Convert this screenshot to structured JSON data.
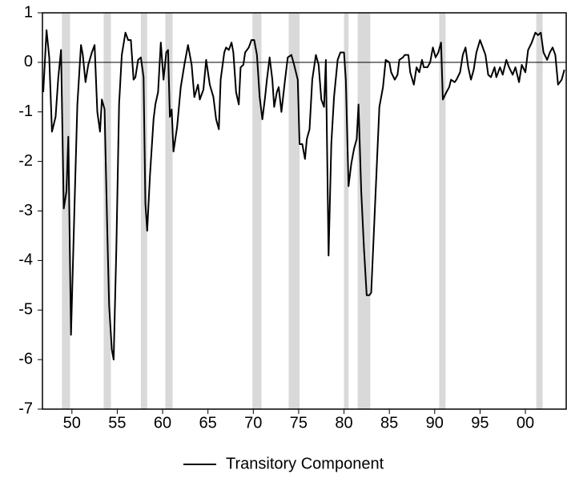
{
  "chart_data": {
    "type": "line",
    "x": [
      1946.84,
      1947.2,
      1947.5,
      1947.8,
      1948.2,
      1948.5,
      1948.8,
      1949.1,
      1949.4,
      1949.6,
      1949.9,
      1950.3,
      1950.6,
      1951.0,
      1951.2,
      1951.5,
      1951.8,
      1952.2,
      1952.5,
      1952.8,
      1953.1,
      1953.3,
      1953.6,
      1953.9,
      1954.1,
      1954.4,
      1954.6,
      1954.9,
      1955.2,
      1955.5,
      1955.9,
      1956.2,
      1956.5,
      1956.8,
      1957.0,
      1957.3,
      1957.6,
      1957.9,
      1958.1,
      1958.3,
      1958.6,
      1959.0,
      1959.2,
      1959.5,
      1959.8,
      1960.1,
      1960.4,
      1960.6,
      1960.8,
      1961.0,
      1961.2,
      1961.6,
      1962.0,
      1962.4,
      1962.8,
      1963.2,
      1963.5,
      1963.9,
      1964.1,
      1964.5,
      1964.8,
      1965.2,
      1965.6,
      1965.9,
      1966.2,
      1966.4,
      1966.8,
      1967.0,
      1967.3,
      1967.6,
      1967.8,
      1968.1,
      1968.4,
      1968.6,
      1968.9,
      1969.1,
      1969.5,
      1969.8,
      1970.1,
      1970.4,
      1970.7,
      1971.0,
      1971.3,
      1971.5,
      1971.8,
      1972.1,
      1972.3,
      1972.6,
      1972.8,
      1973.1,
      1973.5,
      1973.8,
      1974.2,
      1974.5,
      1974.9,
      1975.1,
      1975.4,
      1975.7,
      1975.9,
      1976.2,
      1976.5,
      1976.9,
      1977.2,
      1977.5,
      1977.8,
      1978.0,
      1978.3,
      1978.6,
      1978.9,
      1979.3,
      1979.6,
      1980.0,
      1980.2,
      1980.5,
      1980.8,
      1981.1,
      1981.4,
      1981.6,
      1981.9,
      1982.2,
      1982.5,
      1982.8,
      1983.0,
      1983.3,
      1983.6,
      1983.9,
      1984.3,
      1984.6,
      1985.0,
      1985.2,
      1985.6,
      1985.9,
      1986.1,
      1986.5,
      1986.7,
      1987.1,
      1987.3,
      1987.7,
      1988.0,
      1988.3,
      1988.6,
      1988.8,
      1989.2,
      1989.5,
      1989.8,
      1990.1,
      1990.4,
      1990.7,
      1990.9,
      1991.3,
      1991.6,
      1991.8,
      1992.2,
      1992.4,
      1992.8,
      1993.1,
      1993.4,
      1993.7,
      1994.0,
      1994.3,
      1994.6,
      1995.0,
      1995.3,
      1995.6,
      1995.9,
      1996.2,
      1996.6,
      1996.8,
      1997.2,
      1997.5,
      1997.9,
      1998.2,
      1998.6,
      1998.9,
      1999.3,
      1999.6,
      2000.0,
      2000.3,
      2000.7,
      2001.1,
      2001.4,
      2001.7,
      2002.0,
      2002.4,
      2002.7,
      2003.0,
      2003.3,
      2003.6,
      2004.0,
      2004.3
    ],
    "series": [
      {
        "name": "Transitory Component",
        "color": "#000000",
        "values": [
          -0.6,
          0.65,
          0.1,
          -1.4,
          -1.1,
          -0.3,
          0.25,
          -2.95,
          -2.6,
          -1.5,
          -5.5,
          -2.8,
          -0.85,
          0.35,
          0.15,
          -0.4,
          -0.05,
          0.2,
          0.35,
          -1.0,
          -1.4,
          -0.75,
          -0.95,
          -3.4,
          -4.9,
          -5.8,
          -6.0,
          -3.75,
          -0.85,
          0.15,
          0.6,
          0.45,
          0.45,
          -0.35,
          -0.3,
          0.05,
          0.1,
          -0.3,
          -2.85,
          -3.4,
          -2.3,
          -1.15,
          -0.85,
          -0.6,
          0.4,
          -0.35,
          0.2,
          0.25,
          -1.1,
          -0.95,
          -1.8,
          -1.3,
          -0.5,
          -0.05,
          0.35,
          -0.05,
          -0.7,
          -0.45,
          -0.75,
          -0.55,
          0.05,
          -0.45,
          -0.7,
          -1.15,
          -1.35,
          -0.35,
          0.2,
          0.3,
          0.25,
          0.4,
          0.2,
          -0.6,
          -0.85,
          -0.1,
          -0.05,
          0.2,
          0.3,
          0.45,
          0.45,
          0.15,
          -0.7,
          -1.15,
          -0.7,
          -0.35,
          0.1,
          -0.35,
          -0.9,
          -0.6,
          -0.5,
          -1.0,
          -0.35,
          0.1,
          0.15,
          -0.05,
          -0.35,
          -1.65,
          -1.65,
          -1.95,
          -1.55,
          -1.35,
          -0.35,
          0.15,
          -0.05,
          -0.75,
          -0.9,
          0.05,
          -3.9,
          -1.65,
          -0.7,
          0.05,
          0.2,
          0.2,
          -0.35,
          -2.5,
          -2.05,
          -1.75,
          -1.55,
          -0.85,
          -2.6,
          -3.75,
          -4.7,
          -4.7,
          -4.65,
          -3.4,
          -2.15,
          -0.9,
          -0.5,
          0.05,
          0.0,
          -0.2,
          -0.35,
          -0.25,
          0.05,
          0.1,
          0.15,
          0.15,
          -0.2,
          -0.45,
          -0.1,
          -0.2,
          0.05,
          -0.1,
          -0.1,
          0.0,
          0.3,
          0.1,
          0.2,
          0.4,
          -0.75,
          -0.6,
          -0.5,
          -0.35,
          -0.4,
          -0.35,
          -0.2,
          0.15,
          0.3,
          -0.1,
          -0.35,
          -0.15,
          0.2,
          0.45,
          0.3,
          0.15,
          -0.25,
          -0.3,
          -0.1,
          -0.3,
          -0.1,
          -0.25,
          0.05,
          -0.1,
          -0.25,
          -0.1,
          -0.4,
          -0.05,
          -0.2,
          0.25,
          0.4,
          0.6,
          0.55,
          0.6,
          0.2,
          0.05,
          0.2,
          0.3,
          0.15,
          -0.45,
          -0.35,
          -0.15
        ]
      }
    ],
    "xlim": [
      1946.75,
      2004.5
    ],
    "xticks": [
      {
        "value": 1950,
        "label": "50"
      },
      {
        "value": 1955,
        "label": "55"
      },
      {
        "value": 1960,
        "label": "60"
      },
      {
        "value": 1965,
        "label": "65"
      },
      {
        "value": 1970,
        "label": "70"
      },
      {
        "value": 1975,
        "label": "75"
      },
      {
        "value": 1980,
        "label": "80"
      },
      {
        "value": 1985,
        "label": "85"
      },
      {
        "value": 1990,
        "label": "90"
      },
      {
        "value": 1995,
        "label": "95"
      },
      {
        "value": 2000,
        "label": "00"
      }
    ],
    "ylim": [
      -7,
      1
    ],
    "yticks": [
      -7,
      -6,
      -5,
      -4,
      -3,
      -2,
      -1,
      0,
      1
    ],
    "zero_line": true,
    "shaded_periods": [
      [
        1948.9,
        1949.8
      ],
      [
        1953.5,
        1954.3
      ],
      [
        1957.6,
        1958.3
      ],
      [
        1960.3,
        1961.1
      ],
      [
        1969.9,
        1970.9
      ],
      [
        1973.9,
        1975.1
      ],
      [
        1980.0,
        1980.5
      ],
      [
        1981.5,
        1982.9
      ],
      [
        1990.5,
        1991.2
      ],
      [
        2001.2,
        2001.9
      ]
    ],
    "shade_color": "#d9d9d9",
    "legend": "bottom"
  }
}
